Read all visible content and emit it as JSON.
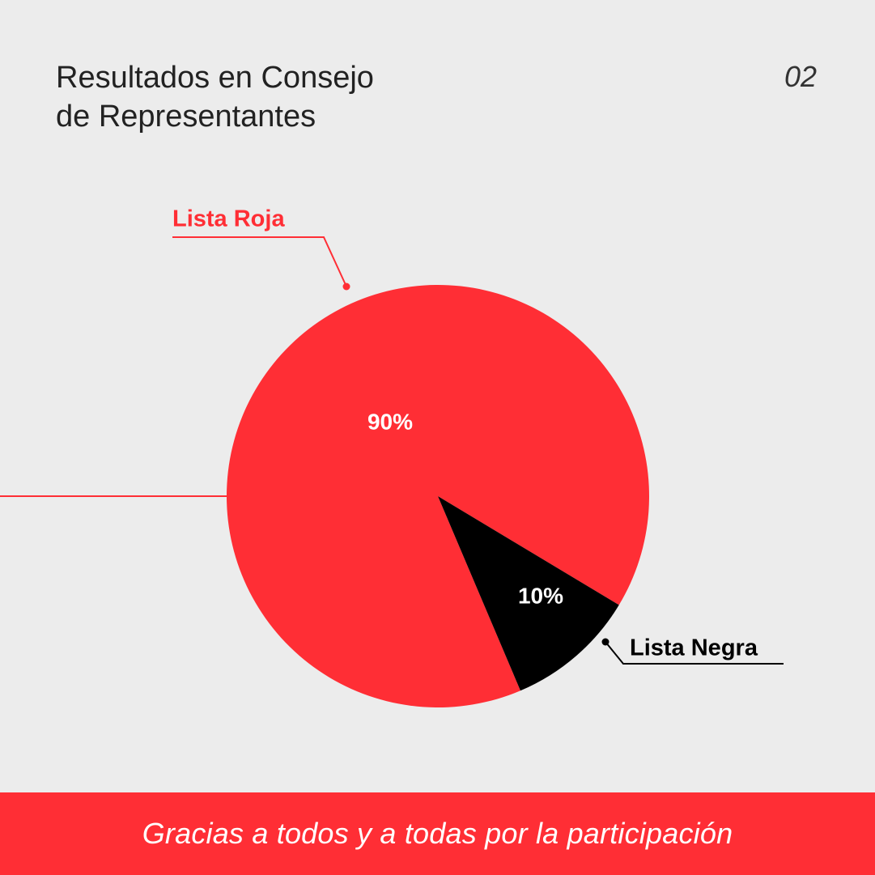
{
  "title": {
    "line1": "Resultados en Consejo",
    "line2": "de Representantes"
  },
  "page_number": "02",
  "colors": {
    "background": "#ececec",
    "accent_red": "#ff2e35",
    "black": "#000000",
    "white": "#ffffff"
  },
  "chart_data": {
    "type": "pie",
    "slices": [
      {
        "label": "Lista Roja",
        "value": 90,
        "value_label": "90%",
        "color": "#ff2e35",
        "label_color": "#ff2e35"
      },
      {
        "label": "Lista Negra",
        "value": 10,
        "value_label": "10%",
        "color": "#000000",
        "label_color": "#000000"
      }
    ]
  },
  "footer": {
    "text": "Gracias a todos y a todas por la participación"
  }
}
